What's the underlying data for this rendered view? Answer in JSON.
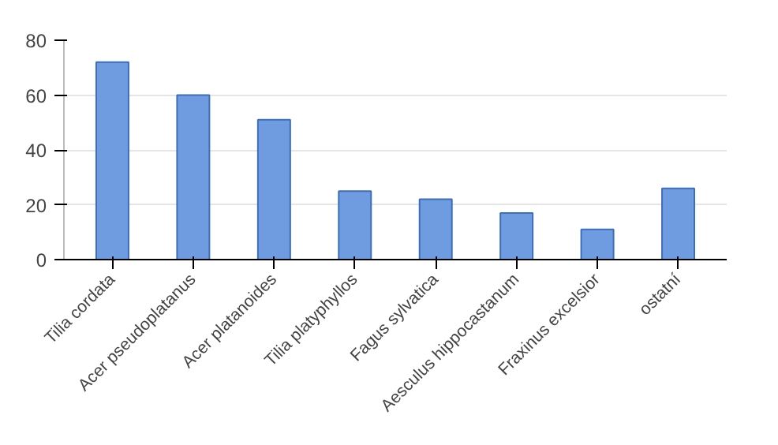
{
  "chart_data": {
    "type": "bar",
    "categories": [
      "Tilia cordata",
      "Acer pseudoplatanus",
      "Acer platanoides",
      "Tilia platyphyllos",
      "Fagus sylvatica",
      "Aesculus hippocastanum",
      "Fraxinus excelsior",
      "ostatní"
    ],
    "values": [
      72,
      60,
      51,
      25,
      22,
      17,
      11,
      26
    ],
    "color": "#6f9be0",
    "ylim": [
      0,
      80
    ],
    "yticks": [
      0,
      20,
      40,
      60,
      80
    ],
    "grid": "y"
  }
}
